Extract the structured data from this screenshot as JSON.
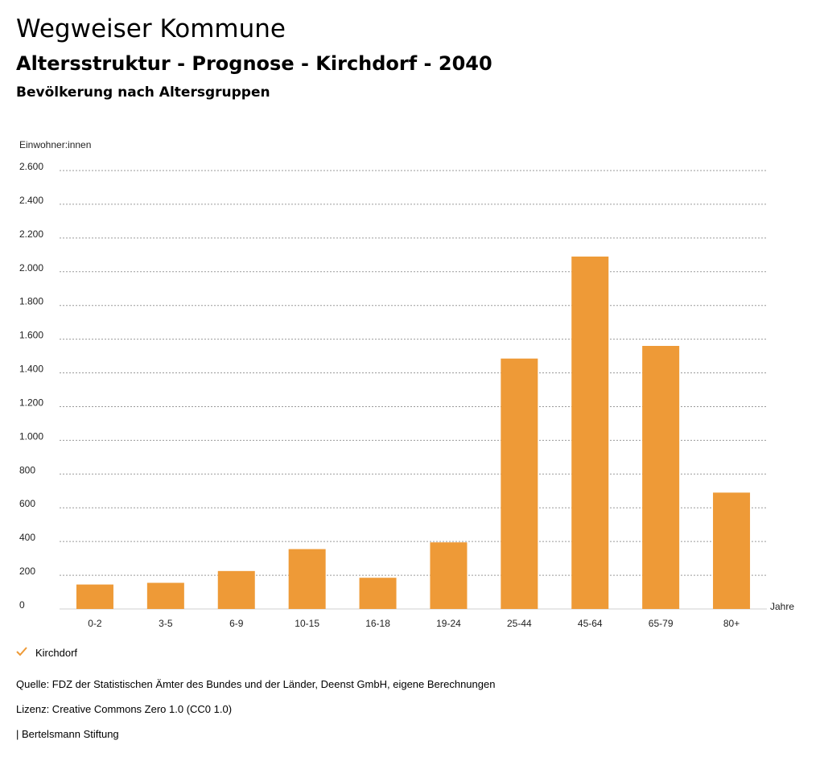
{
  "header": {
    "title": "Wegweiser Kommune",
    "subtitle": "Altersstruktur - Prognose - Kirchdorf - 2040",
    "chart_heading": "Bevölkerung nach Altersgruppen"
  },
  "chart_data": {
    "type": "bar",
    "ylabel": "Einwohner:innen",
    "xlabel": "Jahre",
    "categories": [
      "0-2",
      "3-5",
      "6-9",
      "10-15",
      "16-18",
      "19-24",
      "25-44",
      "45-64",
      "65-79",
      "80+"
    ],
    "series": [
      {
        "name": "Kirchdorf",
        "values": [
          145,
          155,
          225,
          355,
          185,
          395,
          1485,
          2090,
          1560,
          690
        ],
        "color": "#ee9a37"
      }
    ],
    "ylim": [
      0,
      2600
    ],
    "yticks": [
      0,
      200,
      400,
      600,
      800,
      1000,
      1200,
      1400,
      1600,
      1800,
      2000,
      2200,
      2400,
      2600
    ],
    "ytick_labels": [
      "0",
      "200",
      "400",
      "600",
      "800",
      "1.000",
      "1.200",
      "1.400",
      "1.600",
      "1.800",
      "2.000",
      "2.200",
      "2.400",
      "2.600"
    ],
    "grid": true,
    "grid_style": "dotted",
    "legend_position": "bottom-left"
  },
  "legend": {
    "label": "Kirchdorf",
    "icon": "check-icon",
    "color": "#ee9a37"
  },
  "footer": {
    "source": "Quelle: FDZ der Statistischen Ämter des Bundes und der Länder, Deenst GmbH, eigene Berechnungen",
    "license": "Lizenz: Creative Commons Zero 1.0 (CC0 1.0)",
    "publisher": "| Bertelsmann Stiftung"
  }
}
